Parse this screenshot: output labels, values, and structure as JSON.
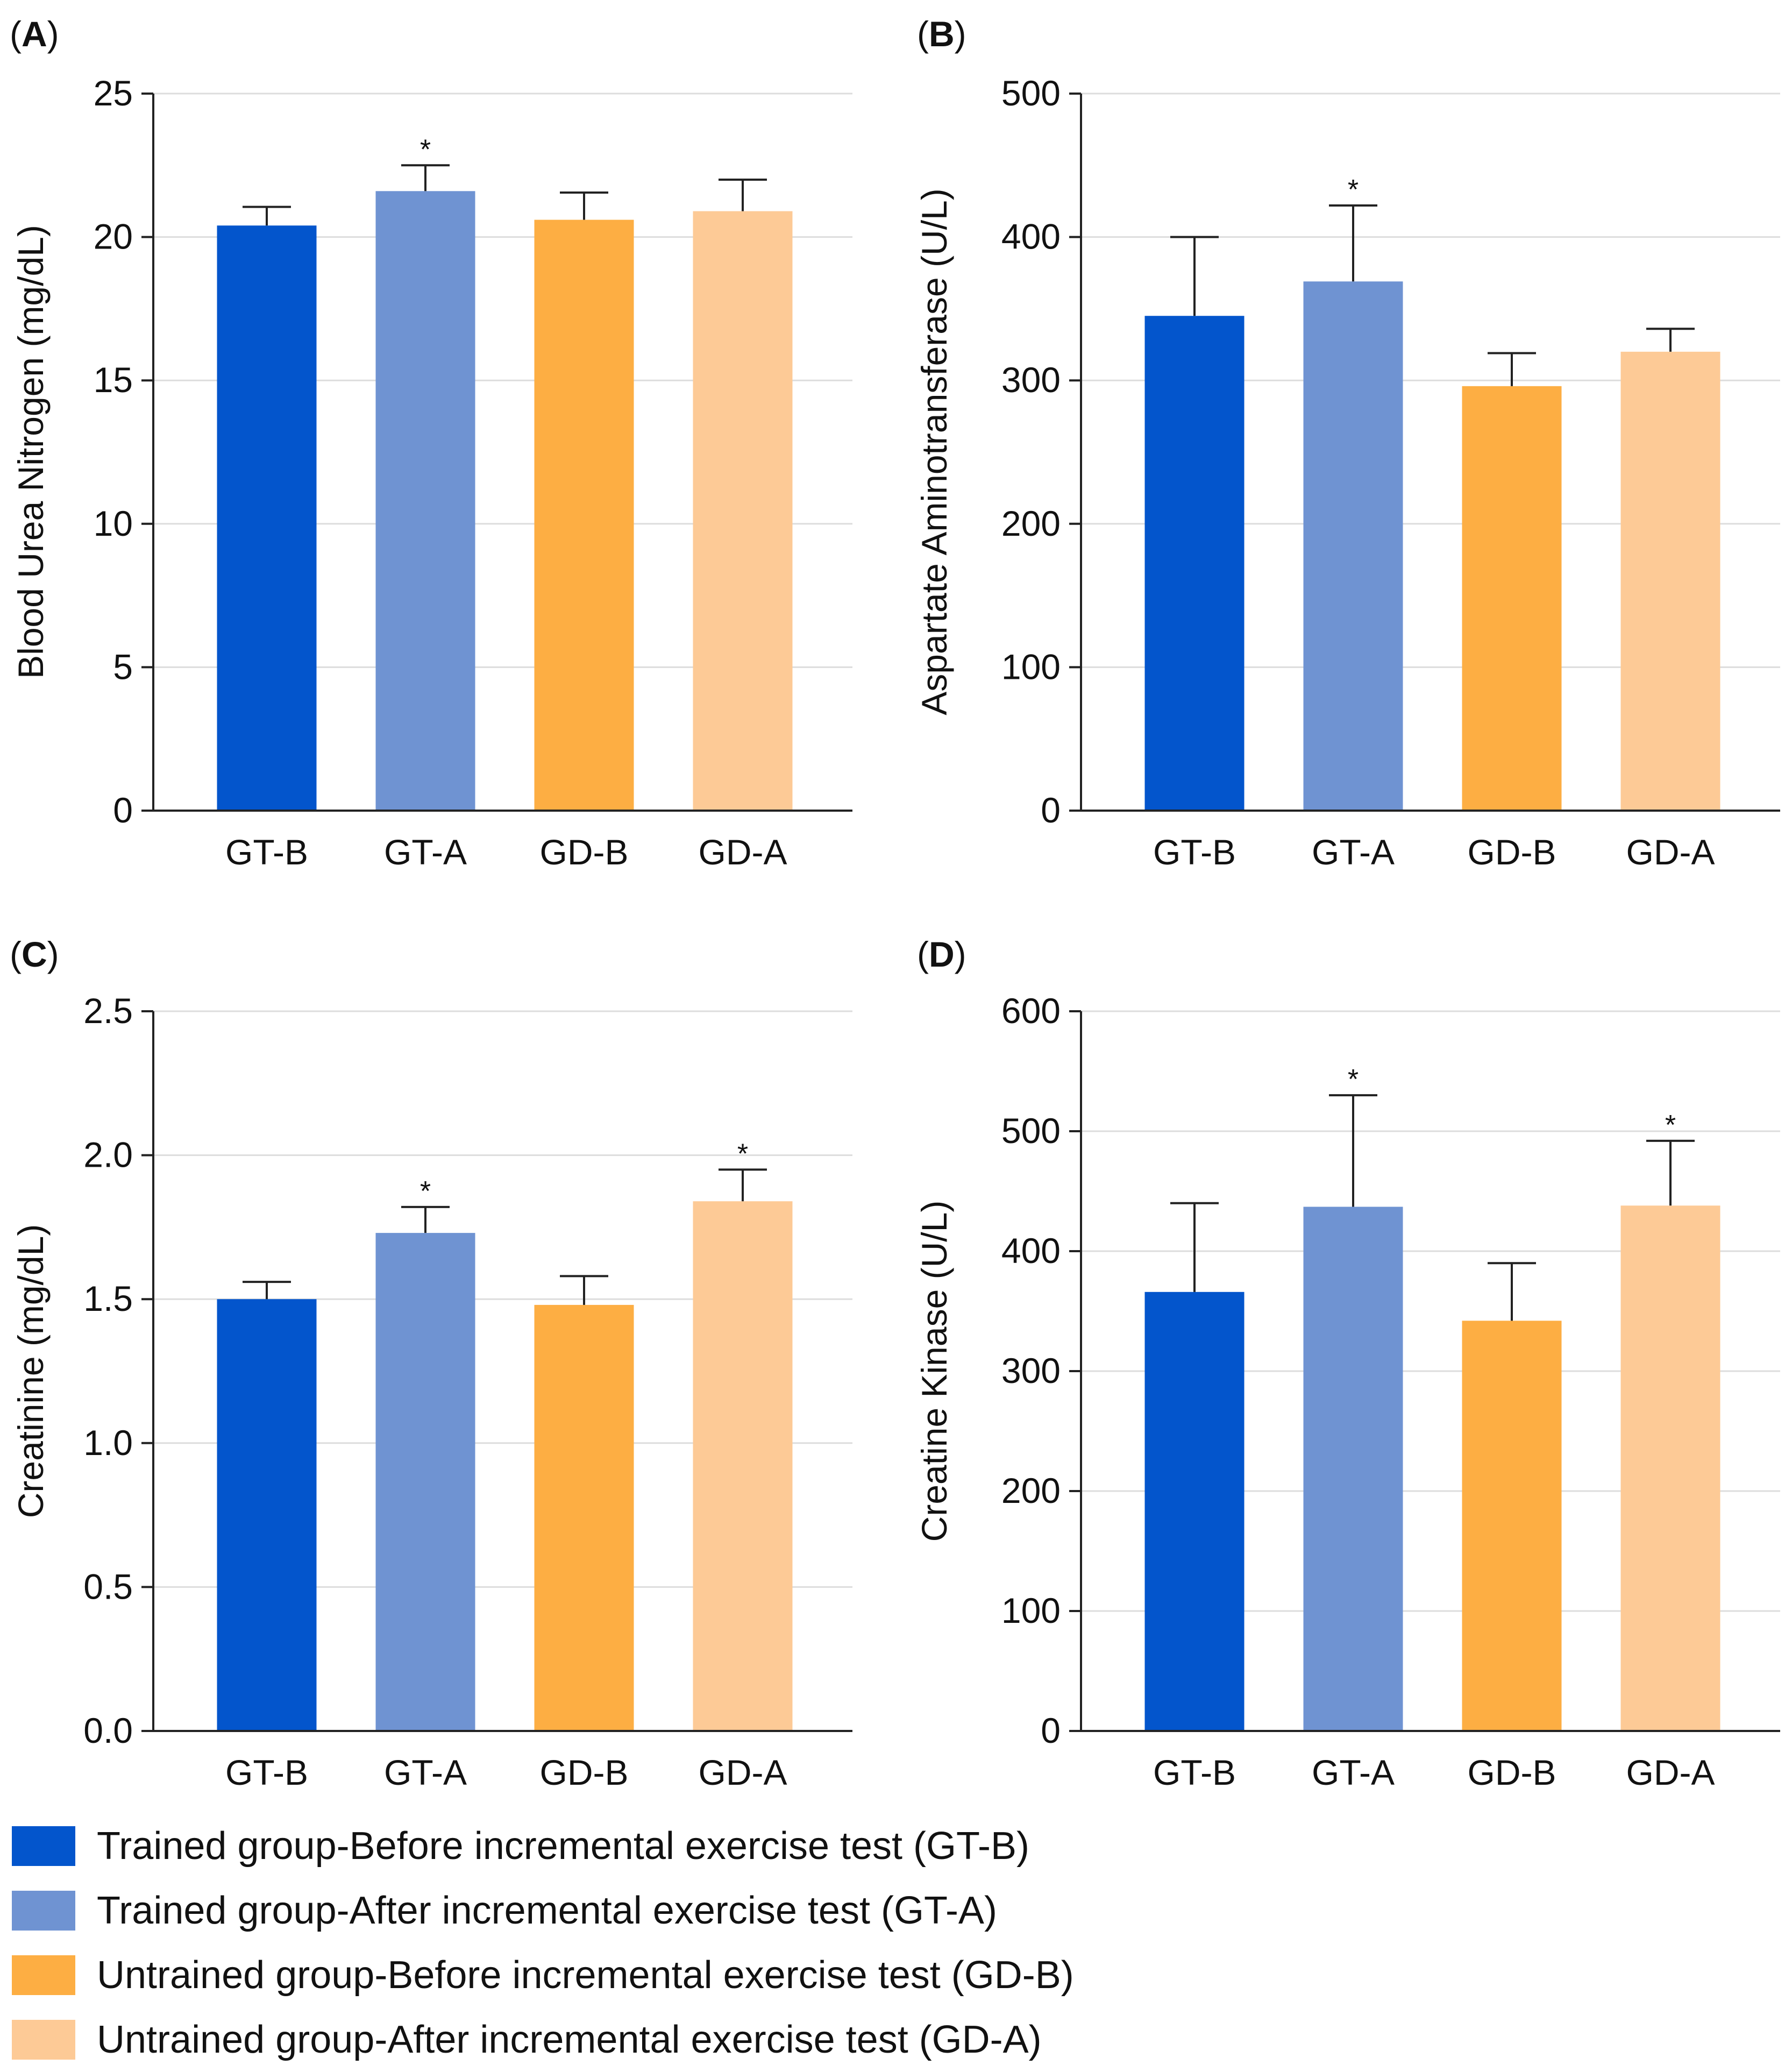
{
  "colors": {
    "GT-B": "#0355cc",
    "GT-A": "#6f93d2",
    "GD-B": "#fdae43",
    "GD-A": "#fdca96"
  },
  "legend": [
    {
      "key": "GT-B",
      "label": "Trained group-Before incremental exercise test (GT-B)"
    },
    {
      "key": "GT-A",
      "label": "Trained group-After incremental exercise test (GT-A)"
    },
    {
      "key": "GD-B",
      "label": "Untrained group-Before incremental exercise test (GD-B)"
    },
    {
      "key": "GD-A",
      "label": "Untrained group-After incremental exercise test (GD-A)"
    }
  ],
  "chart_data": [
    {
      "panel": "(A)",
      "type": "bar",
      "ylabel": "Blood Urea Nitrogen (mg/dL)",
      "categories": [
        "GT-B",
        "GT-A",
        "GD-B",
        "GD-A"
      ],
      "values": [
        20.4,
        21.6,
        20.6,
        20.9
      ],
      "errors": [
        0.65,
        0.9,
        0.95,
        1.1
      ],
      "significant": [
        false,
        true,
        false,
        false
      ],
      "significance_marker": "*",
      "ylim": [
        0,
        25
      ],
      "yticks": [
        "0",
        "5",
        "10",
        "15",
        "20",
        "25"
      ],
      "grid": true
    },
    {
      "panel": "(B)",
      "type": "bar",
      "ylabel": "Aspartate Aminotransferase (U/L)",
      "categories": [
        "GT-B",
        "GT-A",
        "GD-B",
        "GD-A"
      ],
      "values": [
        345,
        369,
        296,
        320
      ],
      "errors": [
        55,
        53,
        23,
        16
      ],
      "significant": [
        false,
        true,
        false,
        false
      ],
      "significance_marker": "*",
      "ylim": [
        0,
        500
      ],
      "yticks": [
        "0",
        "100",
        "200",
        "300",
        "400",
        "500"
      ],
      "grid": true
    },
    {
      "panel": "(C)",
      "type": "bar",
      "ylabel": "Creatinine (mg/dL)",
      "categories": [
        "GT-B",
        "GT-A",
        "GD-B",
        "GD-A"
      ],
      "values": [
        1.5,
        1.73,
        1.48,
        1.84
      ],
      "errors": [
        0.06,
        0.09,
        0.1,
        0.11
      ],
      "significant": [
        false,
        true,
        false,
        true
      ],
      "significance_marker": "*",
      "ylim": [
        0,
        2.5
      ],
      "yticks": [
        "0.0",
        "0.5",
        "1.0",
        "1.5",
        "2.0",
        "2.5"
      ],
      "grid": true
    },
    {
      "panel": "(D)",
      "type": "bar",
      "ylabel": "Creatine Kinase (U/L)",
      "categories": [
        "GT-B",
        "GT-A",
        "GD-B",
        "GD-A"
      ],
      "values": [
        366,
        437,
        342,
        438
      ],
      "errors": [
        74,
        93,
        48,
        54
      ],
      "significant": [
        false,
        true,
        false,
        true
      ],
      "significance_marker": "*",
      "ylim": [
        0,
        600
      ],
      "yticks": [
        "0",
        "100",
        "200",
        "300",
        "400",
        "500",
        "600"
      ],
      "grid": true
    }
  ]
}
